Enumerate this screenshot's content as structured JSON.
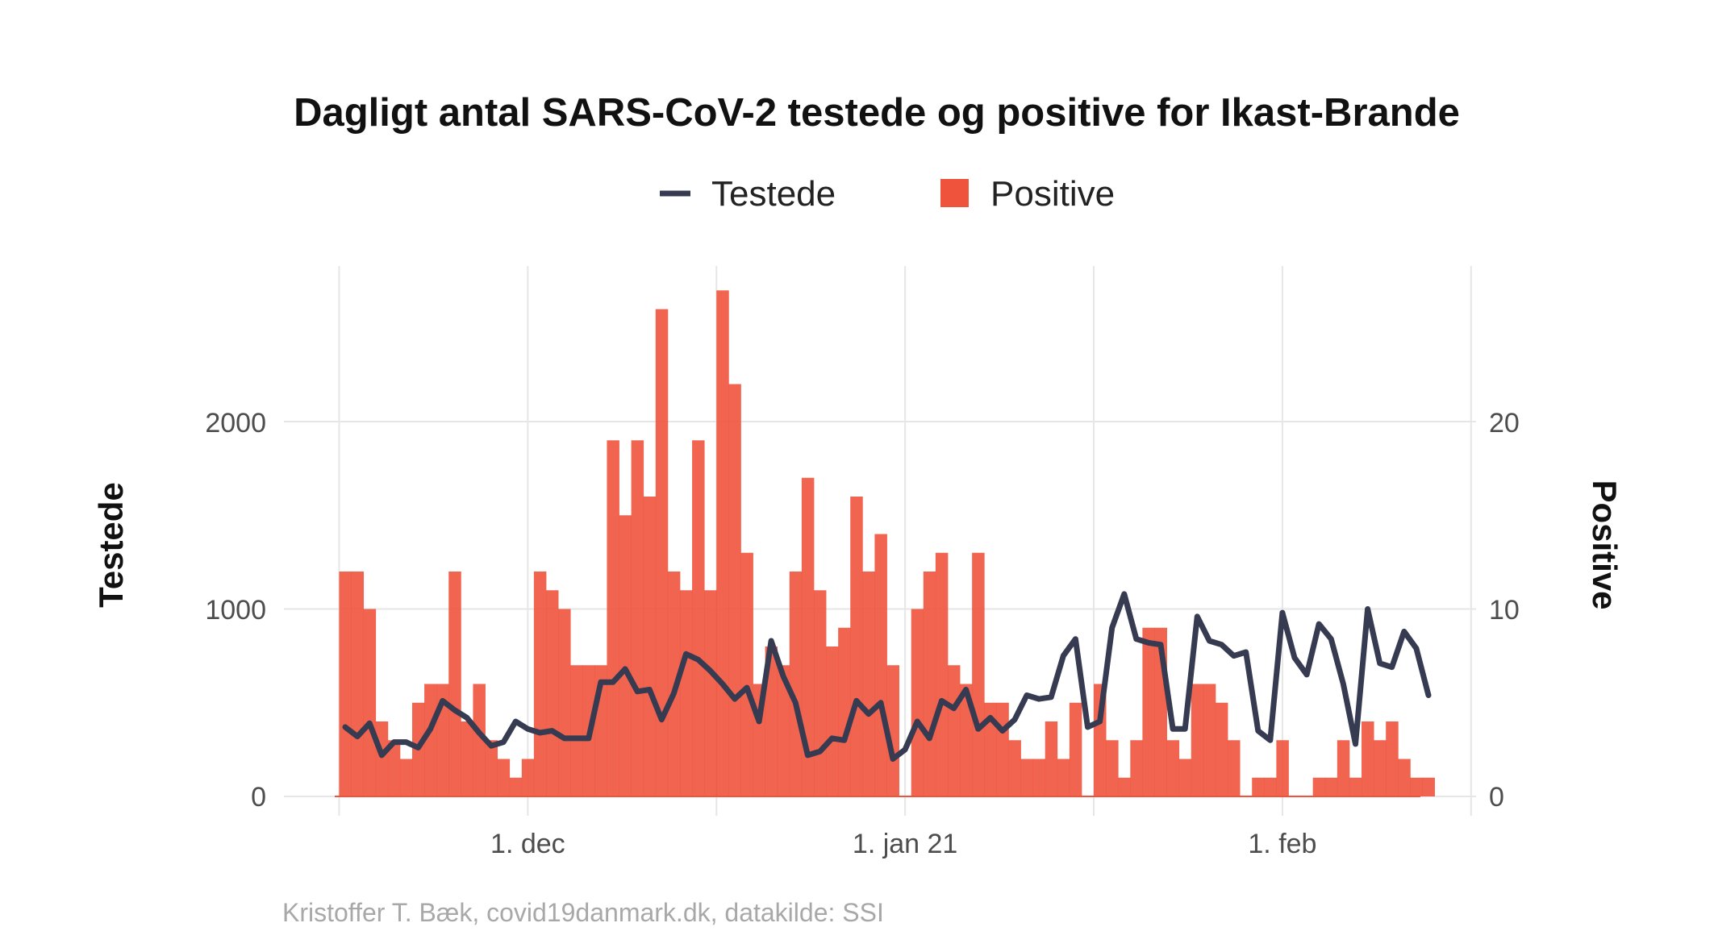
{
  "chart_data": {
    "type": "bar+line",
    "title": "Dagligt antal SARS-CoV-2 testede og positive for Ikast-Brande",
    "legend": {
      "placement": "top-center",
      "items": [
        {
          "name": "Testede",
          "symbol": "line",
          "color": "#363b51"
        },
        {
          "name": "Positive",
          "symbol": "square",
          "color": "#f0533c"
        }
      ]
    },
    "ylabel_left": "Testede",
    "ylabel_right": "Positive",
    "y_left_ticks": [
      "0",
      "1000",
      "2000"
    ],
    "y_right_ticks": [
      "0",
      "10",
      "20"
    ],
    "ylim_left": [
      0,
      2700
    ],
    "ylim_right": [
      0,
      27
    ],
    "x_ticks": [
      {
        "label": "1. dec",
        "day": 15
      },
      {
        "label": "1. jan 21",
        "day": 46
      },
      {
        "label": "1. feb",
        "day": 77
      }
    ],
    "x_start_date": "2020-11-16",
    "x_minor_days": [
      0,
      31,
      62,
      93
    ],
    "grid": true,
    "series": [
      {
        "name": "Testede",
        "type": "line",
        "axis": "left",
        "color": "#363b51",
        "values": [
          370,
          320,
          390,
          220,
          290,
          290,
          260,
          360,
          510,
          460,
          420,
          340,
          270,
          290,
          400,
          360,
          340,
          350,
          310,
          310,
          310,
          610,
          610,
          680,
          560,
          570,
          410,
          550,
          760,
          730,
          670,
          600,
          520,
          580,
          400,
          830,
          640,
          500,
          220,
          240,
          310,
          300,
          510,
          440,
          500,
          200,
          250,
          400,
          310,
          510,
          470,
          570,
          360,
          420,
          350,
          410,
          540,
          520,
          530,
          750,
          840,
          370,
          400,
          900,
          1080,
          840,
          820,
          810,
          360,
          360,
          960,
          830,
          810,
          750,
          770,
          350,
          300,
          980,
          740,
          650,
          920,
          840,
          600,
          280,
          1000,
          710,
          690,
          880,
          790,
          540
        ]
      },
      {
        "name": "Positive",
        "type": "bar",
        "axis": "right",
        "color": "#f0533c",
        "values": [
          12,
          12,
          10,
          4,
          3,
          2,
          5,
          6,
          6,
          12,
          4,
          6,
          3,
          2,
          1,
          2,
          12,
          11,
          10,
          7,
          7,
          7,
          19,
          15,
          19,
          16,
          26,
          12,
          11,
          19,
          11,
          27,
          22,
          13,
          6,
          8,
          7,
          12,
          17,
          11,
          8,
          9,
          16,
          12,
          14,
          7,
          0,
          10,
          12,
          13,
          7,
          6,
          13,
          5,
          5,
          3,
          2,
          2,
          4,
          2,
          5,
          0,
          6,
          3,
          1,
          3,
          9,
          9,
          3,
          2,
          6,
          6,
          5,
          3,
          0,
          1,
          1,
          3,
          0,
          0,
          1,
          1,
          3,
          1,
          4,
          3,
          4,
          2,
          1,
          1
        ]
      }
    ]
  },
  "caption": "Kristoffer T. Bæk, covid19danmark.dk, datakilde: SSI"
}
